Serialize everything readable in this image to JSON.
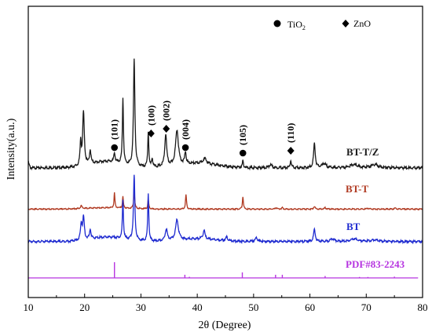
{
  "chart_data": {
    "type": "line",
    "xlabel": "2θ (Degree)",
    "ylabel": "Intensity(a.u.)",
    "xlim": [
      10,
      80
    ],
    "x_ticks": [
      10,
      20,
      30,
      40,
      50,
      60,
      70,
      80
    ],
    "y_ticks_shown": false,
    "grid": false,
    "legend": {
      "placement": "top-right",
      "entries": [
        {
          "marker": "circle",
          "label": "TiO",
          "subscript": "2"
        },
        {
          "marker": "diamond",
          "label": "ZnO",
          "subscript": ""
        }
      ]
    },
    "series": [
      {
        "name": "BT-T/Z",
        "color": "#1a1a1a",
        "baseline": 0.0,
        "peaks": [
          [
            19.3,
            0.22,
            0.25
          ],
          [
            19.8,
            0.5,
            0.35
          ],
          [
            21.0,
            0.13,
            0.3
          ],
          [
            25.3,
            0.09,
            0.25
          ],
          [
            26.8,
            0.62,
            0.22
          ],
          [
            28.8,
            1.0,
            0.3
          ],
          [
            31.3,
            0.33,
            0.22
          ],
          [
            32.0,
            0.08,
            0.25
          ],
          [
            34.4,
            0.3,
            0.4
          ],
          [
            36.4,
            0.33,
            0.6
          ],
          [
            37.9,
            0.11,
            0.3
          ],
          [
            41.3,
            0.05,
            0.8
          ],
          [
            48.1,
            0.06,
            0.25
          ],
          [
            53.0,
            0.03,
            0.6
          ],
          [
            56.6,
            0.07,
            0.25
          ],
          [
            60.8,
            0.23,
            0.35
          ],
          [
            62.5,
            0.04,
            0.8
          ],
          [
            67.8,
            0.03,
            1.5
          ],
          [
            71.5,
            0.03,
            1.5
          ]
        ],
        "hump": [
          [
            24,
            0.06,
            4.0
          ],
          [
            40,
            0.04,
            5.0
          ]
        ]
      },
      {
        "name": "BT-T",
        "color": "#b03a22",
        "baseline": 0.0,
        "peaks": [
          [
            19.4,
            0.06,
            0.3
          ],
          [
            25.3,
            0.32,
            0.18
          ],
          [
            26.8,
            0.25,
            0.18
          ],
          [
            28.8,
            0.37,
            0.22
          ],
          [
            31.3,
            0.2,
            0.2
          ],
          [
            38.0,
            0.3,
            0.22
          ],
          [
            48.1,
            0.27,
            0.2
          ],
          [
            54.0,
            0.03,
            0.3
          ],
          [
            55.1,
            0.03,
            0.3
          ],
          [
            60.8,
            0.06,
            0.3
          ],
          [
            62.7,
            0.03,
            0.3
          ],
          [
            70.3,
            0.02,
            0.4
          ],
          [
            75.1,
            0.02,
            0.4
          ]
        ],
        "hump": [
          [
            24,
            0.03,
            5.0
          ]
        ]
      },
      {
        "name": "BT",
        "color": "#1f2bd0",
        "baseline": 0.0,
        "peaks": [
          [
            19.4,
            0.18,
            0.3
          ],
          [
            19.8,
            0.26,
            0.35
          ],
          [
            21.0,
            0.11,
            0.3
          ],
          [
            26.8,
            0.45,
            0.22
          ],
          [
            28.8,
            0.74,
            0.3
          ],
          [
            31.3,
            0.55,
            0.22
          ],
          [
            34.5,
            0.13,
            0.45
          ],
          [
            36.4,
            0.23,
            0.6
          ],
          [
            41.2,
            0.1,
            0.4
          ],
          [
            45.2,
            0.04,
            0.4
          ],
          [
            50.5,
            0.04,
            0.5
          ],
          [
            60.8,
            0.14,
            0.35
          ],
          [
            64.0,
            0.03,
            0.8
          ],
          [
            67.8,
            0.03,
            1.5
          ],
          [
            71.5,
            0.02,
            1.5
          ]
        ],
        "hump": [
          [
            24,
            0.05,
            4.0
          ],
          [
            40,
            0.03,
            5.0
          ]
        ]
      },
      {
        "name": "PDF#83-2243",
        "color": "#b634e0",
        "reference_lines": [
          [
            25.3,
            1.0
          ],
          [
            37.8,
            0.2
          ],
          [
            38.6,
            0.07
          ],
          [
            48.0,
            0.35
          ],
          [
            53.9,
            0.2
          ],
          [
            55.1,
            0.2
          ],
          [
            62.7,
            0.12
          ],
          [
            68.8,
            0.06
          ],
          [
            70.3,
            0.06
          ],
          [
            75.0,
            0.08
          ]
        ]
      }
    ],
    "annotations": [
      {
        "text": "(101)",
        "x": 25.3,
        "marker": "circle"
      },
      {
        "text": "(100)",
        "x": 31.8,
        "marker": "diamond"
      },
      {
        "text": "(002)",
        "x": 34.5,
        "marker": "diamond"
      },
      {
        "text": "(004)",
        "x": 37.9,
        "marker": "circle"
      },
      {
        "text": "(105)",
        "x": 48.1,
        "marker": "circle"
      },
      {
        "text": "(110)",
        "x": 56.6,
        "marker": "diamond"
      }
    ]
  }
}
